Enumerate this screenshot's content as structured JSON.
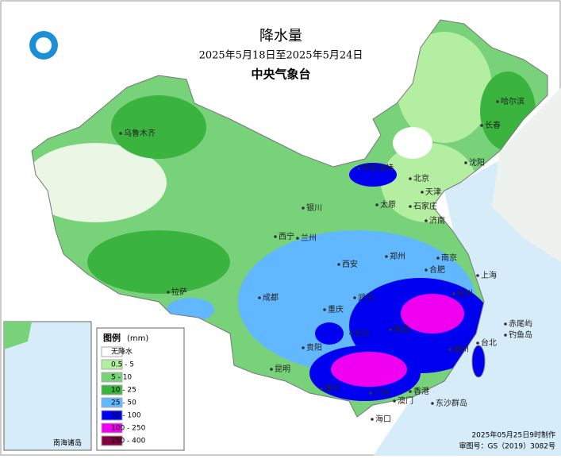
{
  "header": {
    "title": "降水量",
    "period": "2025年5月18日至2025年5月24日",
    "agency": "中央气象台"
  },
  "legend": {
    "title": "图例",
    "unit": "(mm)",
    "items": [
      {
        "label": "无降水",
        "color": "#ffffff"
      },
      {
        "label": "0.5 - 5",
        "color": "#b4eea0"
      },
      {
        "label": "5 - 10",
        "color": "#78d27a"
      },
      {
        "label": "10 - 25",
        "color": "#3bb43f"
      },
      {
        "label": "25 - 50",
        "color": "#61b8ff"
      },
      {
        "label": "50 - 100",
        "color": "#0000f0"
      },
      {
        "label": "100 - 250",
        "color": "#f000f0"
      },
      {
        "label": "250 - 400",
        "color": "#800040"
      }
    ]
  },
  "cities": [
    "哈尔滨",
    "长春",
    "沈阳",
    "乌鲁木齐",
    "呼和浩特",
    "北京",
    "天津",
    "石家庄",
    "太原",
    "济南",
    "银川",
    "西宁",
    "兰州",
    "郑州",
    "西安",
    "合肥",
    "南京",
    "上海",
    "拉萨",
    "成都",
    "重庆",
    "武汉",
    "杭州",
    "长沙",
    "南昌",
    "福州",
    "贵阳",
    "昆明",
    "南宁",
    "广州",
    "香港",
    "澳门",
    "海口",
    "台北",
    "东沙群岛",
    "赤尾屿",
    "钓鱼岛"
  ],
  "inset": {
    "label": "南海诸岛"
  },
  "footer": {
    "made": "2025年05月25日9时制作",
    "approval": "审图号：GS（2019）3082号"
  }
}
